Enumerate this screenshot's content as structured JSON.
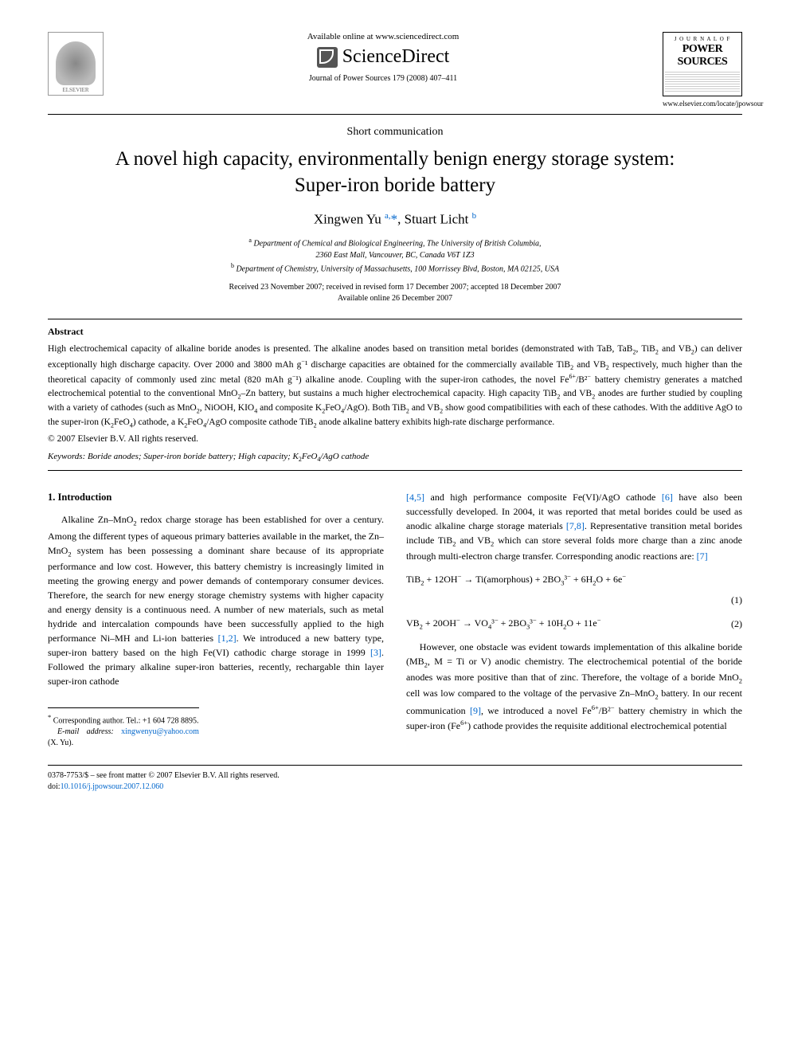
{
  "header": {
    "available_online": "Available online at www.sciencedirect.com",
    "sciencedirect": "ScienceDirect",
    "journal_ref": "Journal of Power Sources 179 (2008) 407–411",
    "elsevier": "ELSEVIER",
    "journal_cover": {
      "top_label": "J O U R N A L  O F",
      "name1": "POWER",
      "name2": "SOURCES"
    },
    "journal_url": "www.elsevier.com/locate/jpowsour"
  },
  "article": {
    "type": "Short communication",
    "title_line1": "A novel high capacity, environmentally benign energy storage system:",
    "title_line2": "Super-iron boride battery",
    "authors_html": "Xingwen Yu <sup>a,</sup><span class='star'>*</span>, Stuart Licht <sup>b</sup>",
    "affil_a": "Department of Chemical and Biological Engineering, The University of British Columbia,",
    "affil_a2": "2360 East Mall, Vancouver, BC, Canada V6T 1Z3",
    "affil_b": "Department of Chemistry, University of Massachusetts, 100 Morrissey Blvd, Boston, MA 02125, USA",
    "dates1": "Received 23 November 2007; received in revised form 17 December 2007; accepted 18 December 2007",
    "dates2": "Available online 26 December 2007"
  },
  "abstract": {
    "heading": "Abstract",
    "text": "High electrochemical capacity of alkaline boride anodes is presented. The alkaline anodes based on transition metal borides (demonstrated with TaB, TaB₂, TiB₂ and VB₂) can deliver exceptionally high discharge capacity. Over 2000 and 3800 mAh g⁻¹ discharge capacities are obtained for the commercially available TiB₂ and VB₂ respectively, much higher than the theoretical capacity of commonly used zinc metal (820 mAh g⁻¹) alkaline anode. Coupling with the super-iron cathodes, the novel Fe⁶⁺/B²⁻ battery chemistry generates a matched electrochemical potential to the conventional MnO₂–Zn battery, but sustains a much higher electrochemical capacity. High capacity TiB₂ and VB₂ anodes are further studied by coupling with a variety of cathodes (such as MnO₂, NiOOH, KIO₄ and composite K₂FeO₄/AgO). Both TiB₂ and VB₂ show good compatibilities with each of these cathodes. With the additive AgO to the super-iron (K₂FeO₄) cathode, a K₂FeO₄/AgO composite cathode TiB₂ anode alkaline battery exhibits high-rate discharge performance.",
    "copyright": "© 2007 Elsevier B.V. All rights reserved.",
    "keywords_label": "Keywords:",
    "keywords": "Boride anodes; Super-iron boride battery; High capacity; K₂FeO₄/AgO cathode"
  },
  "body": {
    "intro_heading": "1. Introduction",
    "col1_p1": "Alkaline Zn–MnO₂ redox charge storage has been established for over a century. Among the different types of aqueous primary batteries available in the market, the Zn–MnO₂ system has been possessing a dominant share because of its appropriate performance and low cost. However, this battery chemistry is increasingly limited in meeting the growing energy and power demands of contemporary consumer devices. Therefore, the search for new energy storage chemistry systems with higher capacity and energy density is a continuous need. A number of new materials, such as metal hydride and intercalation compounds have been successfully applied to the high performance Ni–MH and Li-ion batteries ",
    "ref12": "[1,2]",
    "col1_p1b": ". We introduced a new battery type, super-iron battery based on the high Fe(VI) cathodic charge storage in 1999 ",
    "ref3": "[3]",
    "col1_p1c": ". Followed the primary alkaline super-iron batteries, recently, rechargable thin layer super-iron cathode ",
    "col2_p1a": "",
    "ref45": "[4,5]",
    "col2_p1b": " and high performance composite Fe(VI)/AgO cathode ",
    "ref6": "[6]",
    "col2_p1c": " have also been successfully developed. In 2004, it was reported that metal borides could be used as anodic alkaline charge storage materials ",
    "ref78": "[7,8]",
    "col2_p1d": ". Representative transition metal borides include TiB₂ and VB₂ which can store several folds more charge than a zinc anode through multi-electron charge transfer. Corresponding anodic reactions are: ",
    "ref7": "[7]",
    "eq1": "TiB₂ + 12OH⁻ → Ti(amorphous) + 2BO₃³⁻ + 6H₂O + 6e⁻",
    "eq1_num": "(1)",
    "eq2": "VB₂ + 20OH⁻ → VO₄³⁻ + 2BO₃³⁻ + 10H₂O + 11e⁻",
    "eq2_num": "(2)",
    "col2_p2a": "However, one obstacle was evident towards implementation of this alkaline boride (MB₂, M = Ti or V) anodic chemistry. The electrochemical potential of the boride anodes was more positive than that of zinc. Therefore, the voltage of a boride MnO₂ cell was low compared to the voltage of the pervasive Zn–MnO₂ battery. In our recent communication ",
    "ref9": "[9]",
    "col2_p2b": ", we introduced a novel Fe⁶⁺/B²⁻ battery chemistry in which the super-iron (Fe⁶⁺) cathode provides the requisite additional electrochemical potential"
  },
  "corresponding": {
    "star": "*",
    "label": "Corresponding author. Tel.: +1 604 728 8895.",
    "email_label": "E-mail address:",
    "email": "xingwenyu@yahoo.com",
    "email_suffix": "(X. Yu)."
  },
  "footer": {
    "line1": "0378-7753/$ – see front matter © 2007 Elsevier B.V. All rights reserved.",
    "doi_label": "doi:",
    "doi": "10.1016/j.jpowsour.2007.12.060"
  },
  "colors": {
    "link": "#0066cc",
    "text": "#000000",
    "bg": "#ffffff"
  }
}
